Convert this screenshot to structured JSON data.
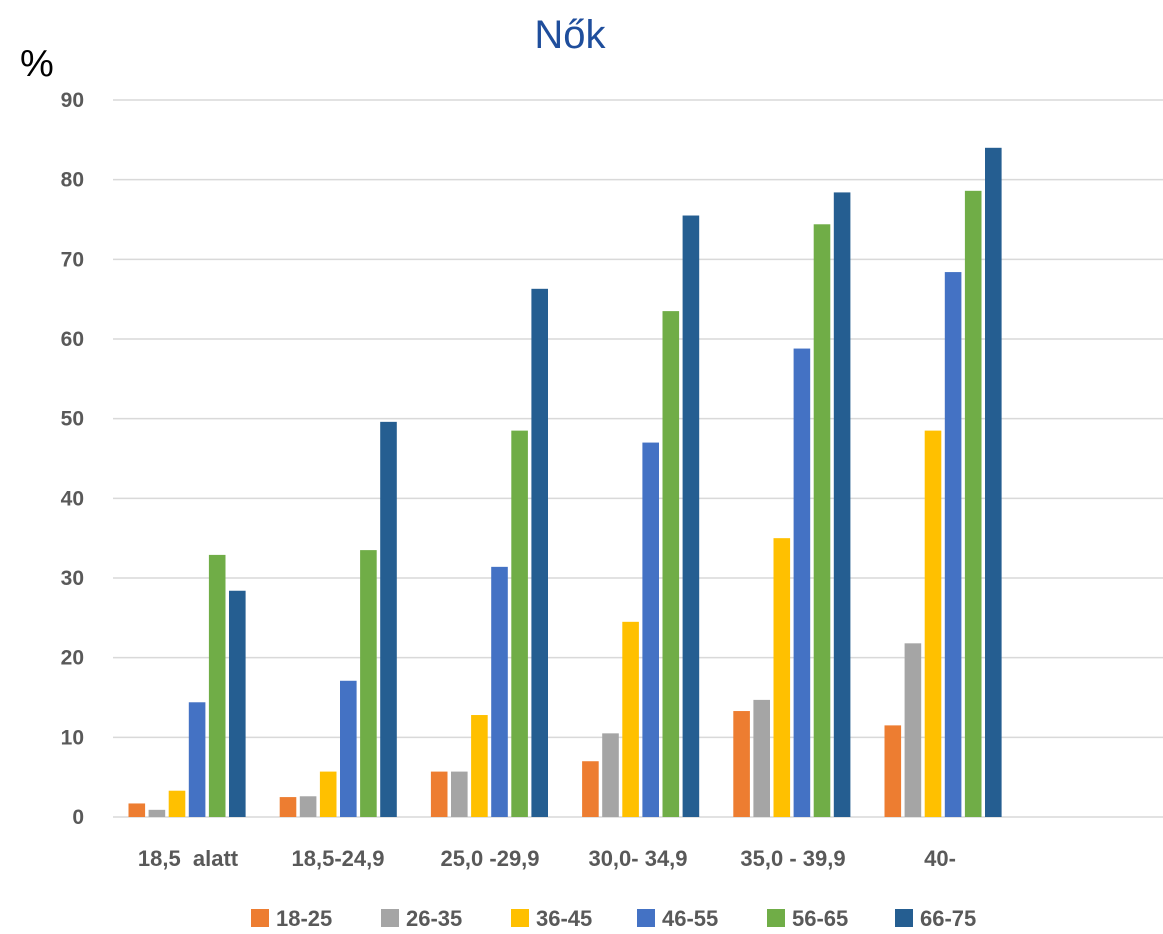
{
  "chart_data": {
    "type": "bar",
    "title": "Nők",
    "ylabel": "%",
    "ylim": [
      0,
      90
    ],
    "yticks": [
      0,
      10,
      20,
      30,
      40,
      50,
      60,
      70,
      80,
      90
    ],
    "categories": [
      "18,5  alatt",
      "18,5-24,9",
      "25,0 -29,9",
      "30,0- 34,9",
      "35,0 - 39,9",
      "40-"
    ],
    "series": [
      {
        "name": "18-25",
        "color": "#ed7d31",
        "values": [
          1.7,
          2.5,
          5.7,
          7.0,
          13.3,
          11.5
        ]
      },
      {
        "name": "26-35",
        "color": "#a5a5a5",
        "values": [
          0.9,
          2.6,
          5.7,
          10.5,
          14.7,
          21.8
        ]
      },
      {
        "name": "36-45",
        "color": "#ffc000",
        "values": [
          3.3,
          5.7,
          12.8,
          24.5,
          35.0,
          48.5
        ]
      },
      {
        "name": "46-55",
        "color": "#4472c4",
        "values": [
          14.4,
          17.1,
          31.4,
          47.0,
          58.8,
          68.4
        ]
      },
      {
        "name": "56-65",
        "color": "#70ad47",
        "values": [
          32.9,
          33.5,
          48.5,
          63.5,
          74.4,
          78.6
        ]
      },
      {
        "name": "66-75",
        "color": "#255e91",
        "values": [
          28.4,
          49.6,
          66.3,
          75.5,
          78.4,
          84.0
        ]
      }
    ],
    "grid": true,
    "legend_position": "bottom"
  }
}
